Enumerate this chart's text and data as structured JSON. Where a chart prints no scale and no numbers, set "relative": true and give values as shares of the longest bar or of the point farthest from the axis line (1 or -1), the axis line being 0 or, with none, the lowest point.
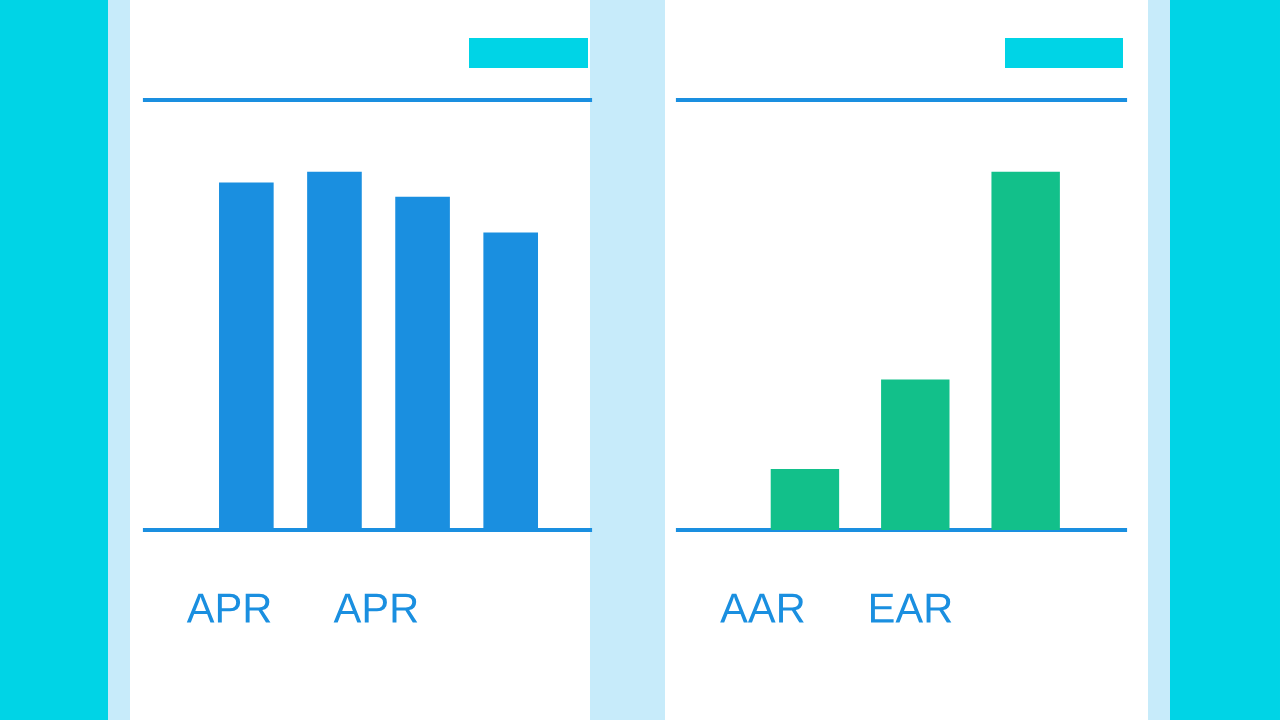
{
  "chart_data": [
    {
      "type": "bar",
      "relative": true,
      "categories": [
        null,
        null,
        null,
        null
      ],
      "values": [
        0.97,
        1,
        0.93,
        0.83
      ],
      "color": "#1a8fe0",
      "annotations": [
        "APR",
        "APR"
      ]
    },
    {
      "type": "bar",
      "relative": true,
      "categories": [
        null,
        null,
        null
      ],
      "values": [
        0.17,
        0.42,
        1
      ],
      "color": "#12c08a",
      "annotations": [
        "AAR",
        "EAR"
      ]
    }
  ]
}
